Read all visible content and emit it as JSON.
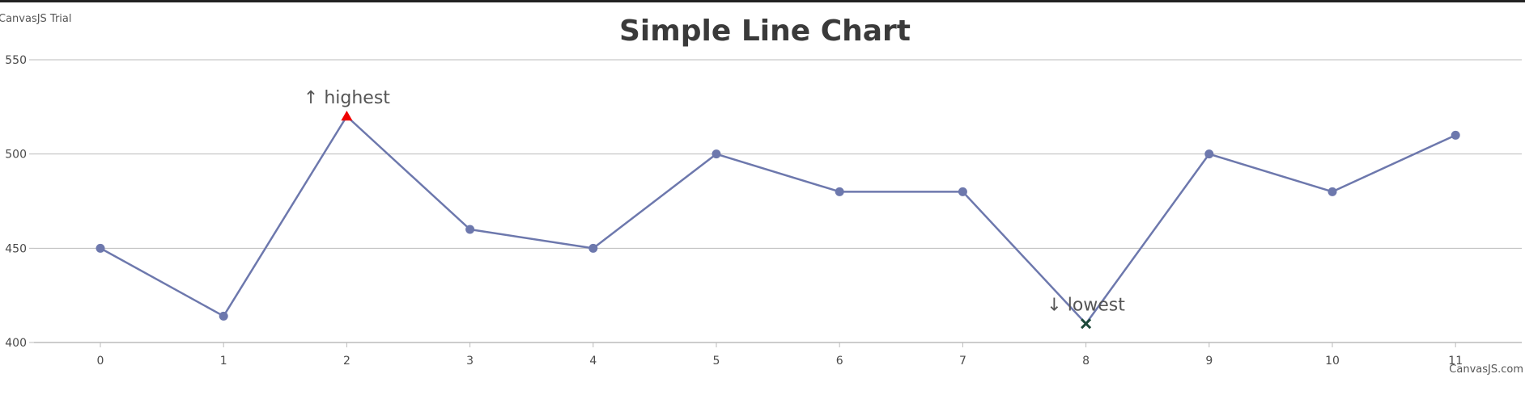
{
  "watermark_top": "CanvasJS Trial",
  "watermark_bottom": "CanvasJS.com",
  "colors": {
    "line": "#6d78ad",
    "marker": "#6d78ad",
    "highest_marker": "#ee0000",
    "lowest_marker": "#1d4a3a",
    "grid": "#bbbbbb",
    "axis": "#bbbbbb",
    "title": "#3a3a3a",
    "text": "#4a4a4a"
  },
  "chart_data": {
    "type": "line",
    "title": "Simple Line Chart",
    "xlabel": "",
    "ylabel": "",
    "x": [
      0,
      1,
      2,
      3,
      4,
      5,
      6,
      7,
      8,
      9,
      10,
      11
    ],
    "xticks": [
      "0",
      "1",
      "2",
      "3",
      "4",
      "5",
      "6",
      "7",
      "8",
      "9",
      "10",
      "11"
    ],
    "yticks": [
      "400",
      "450",
      "500",
      "550"
    ],
    "ylim": [
      400,
      550
    ],
    "grid": true,
    "series": [
      {
        "values": [
          450,
          414,
          520,
          460,
          450,
          500,
          480,
          480,
          410,
          500,
          480,
          510
        ]
      }
    ],
    "annotations": [
      {
        "index": 2,
        "label": "↑ highest",
        "marker": "triangle"
      },
      {
        "index": 8,
        "label": "↓ lowest",
        "marker": "cross"
      }
    ]
  }
}
